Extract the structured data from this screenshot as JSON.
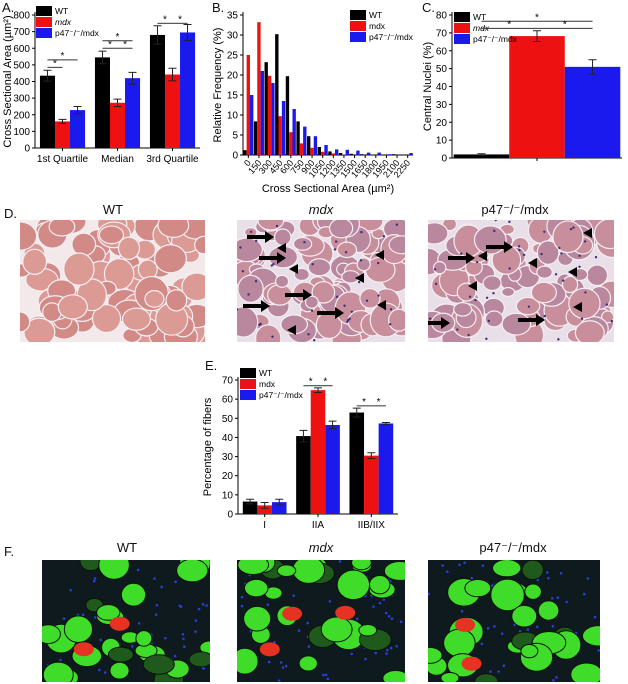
{
  "colors": {
    "WT": "#000000",
    "mdx": "#ee1111",
    "p47": "#1a1aee"
  },
  "panel_labels": {
    "A": "A.",
    "B": "B.",
    "C": "C.",
    "D": "D.",
    "E": "E.",
    "F": "F."
  },
  "panel_d": {
    "images": [
      "WT",
      "mdx",
      "p47⁻/⁻/mdx"
    ]
  },
  "panel_f": {
    "images": [
      "WT",
      "mdx",
      "p47⁻/⁻/mdx"
    ]
  },
  "chart_data": [
    {
      "id": "A",
      "type": "bar",
      "categories": [
        "1st Quartile",
        "Median",
        "3rd Quartile"
      ],
      "series": [
        {
          "name": "WT",
          "key": "WT",
          "values": [
            435,
            545,
            680
          ],
          "errors": [
            33,
            38,
            55
          ]
        },
        {
          "name": "mdx",
          "key": "mdx",
          "values": [
            160,
            272,
            442
          ],
          "errors": [
            12,
            22,
            38
          ]
        },
        {
          "name": "p47⁻/⁻/mdx",
          "key": "p47",
          "values": [
            228,
            420,
            695
          ],
          "errors": [
            22,
            35,
            48
          ]
        }
      ],
      "ylabel": "Cross Sectional Area (µm²)",
      "xlabel": "",
      "ylim": [
        0,
        800
      ],
      "ytick_step": 100,
      "legend": "top-left",
      "italic_mdx": true,
      "significance": [
        {
          "cat": 0,
          "from": 0,
          "to": 1,
          "y": 485,
          "text": "*"
        },
        {
          "cat": 0,
          "from": 0,
          "to": 2,
          "y": 530,
          "text": "*"
        },
        {
          "cat": 1,
          "from": 0,
          "to": 1,
          "y": 600,
          "text": "*"
        },
        {
          "cat": 1,
          "from": 1,
          "to": 2,
          "y": 600,
          "text": "*"
        },
        {
          "cat": 1,
          "from": 0,
          "to": 2,
          "y": 645,
          "text": "*"
        },
        {
          "cat": 2,
          "from": 0,
          "to": 1,
          "y": 750,
          "text": "*"
        },
        {
          "cat": 2,
          "from": 1,
          "to": 2,
          "y": 750,
          "text": "*"
        }
      ]
    },
    {
      "id": "B",
      "type": "bar",
      "categories": [
        "0",
        "150",
        "300",
        "450",
        "600",
        "750",
        "900",
        "1050",
        "1200",
        "1350",
        "1500",
        "1650",
        "1800",
        "1950",
        "2100",
        "2250"
      ],
      "series": [
        {
          "name": "WT",
          "key": "WT",
          "values": [
            1.2,
            8.4,
            23.2,
            30.2,
            19.7,
            8.4,
            4.7,
            2.0,
            0.9,
            0.5,
            0.3,
            0.2,
            0.1,
            0.1,
            0.2,
            0.0
          ]
        },
        {
          "name": "mdx",
          "key": "mdx",
          "values": [
            25.0,
            33.2,
            19.8,
            9.7,
            5.7,
            2.9,
            1.8,
            0.8,
            0.4,
            0.1,
            0.0,
            0.0,
            0.0,
            0.0,
            0.0,
            0.0
          ]
        },
        {
          "name": "p47⁻/⁻/mdx",
          "key": "p47",
          "values": [
            15.0,
            21.0,
            18.0,
            13.5,
            11.5,
            7.1,
            4.7,
            2.5,
            1.4,
            1.3,
            1.1,
            0.6,
            0.6,
            0.2,
            0.0,
            0.5
          ]
        }
      ],
      "ylabel": "Relative Frequency (%)",
      "xlabel": "Cross Sectional Area (µm²)",
      "ylim": [
        0,
        35
      ],
      "ytick_step": 5,
      "legend": "top-right",
      "italic_mdx": false
    },
    {
      "id": "C",
      "type": "bar",
      "categories": [
        ""
      ],
      "series": [
        {
          "name": "WT",
          "key": "WT",
          "values": [
            2.0
          ],
          "errors": [
            0.4
          ]
        },
        {
          "name": "mdx",
          "key": "mdx",
          "values": [
            68.2
          ],
          "errors": [
            3.0
          ]
        },
        {
          "name": "p47⁻/⁻/mdx",
          "key": "p47",
          "values": [
            51.0
          ],
          "errors": [
            4.0
          ]
        }
      ],
      "ylabel": "Central Nuclei (%)",
      "xlabel": "",
      "ylim": [
        0,
        80
      ],
      "ytick_step": 10,
      "legend": "top-left",
      "italic_mdx": true,
      "significance": [
        {
          "cat": 0,
          "from": 0,
          "to": 2,
          "y": 76.5,
          "text": "*"
        },
        {
          "cat": 0,
          "from": 0,
          "to": 1,
          "y": 72.5,
          "text": "*"
        },
        {
          "cat": 0,
          "from": 1,
          "to": 2,
          "y": 72.5,
          "text": "*"
        }
      ]
    },
    {
      "id": "E",
      "type": "bar",
      "categories": [
        "I",
        "IIA",
        "IIB/IIX"
      ],
      "series": [
        {
          "name": "WT",
          "key": "WT",
          "values": [
            6.5,
            40.7,
            53.0
          ],
          "errors": [
            1.2,
            3.0,
            2.3
          ]
        },
        {
          "name": "mdx",
          "key": "mdx",
          "values": [
            4.5,
            64.7,
            30.5
          ],
          "errors": [
            1.5,
            1.2,
            1.5
          ]
        },
        {
          "name": "p47⁻/⁻/mdx",
          "key": "p47",
          "values": [
            6.2,
            46.5,
            47.3
          ],
          "errors": [
            1.5,
            2.0,
            0.5
          ]
        }
      ],
      "ylabel": "Percentage of fibers",
      "xlabel": "",
      "ylim": [
        0,
        70
      ],
      "ytick_step": 10,
      "legend": "top-left",
      "italic_mdx": false,
      "significance": [
        {
          "cat": 1,
          "from": 0,
          "to": 1,
          "y": 67,
          "text": "*"
        },
        {
          "cat": 1,
          "from": 1,
          "to": 2,
          "y": 67,
          "text": "*"
        },
        {
          "cat": 2,
          "from": 0,
          "to": 1,
          "y": 56.5,
          "text": "*"
        },
        {
          "cat": 2,
          "from": 1,
          "to": 2,
          "y": 56.5,
          "text": "*"
        }
      ]
    }
  ]
}
